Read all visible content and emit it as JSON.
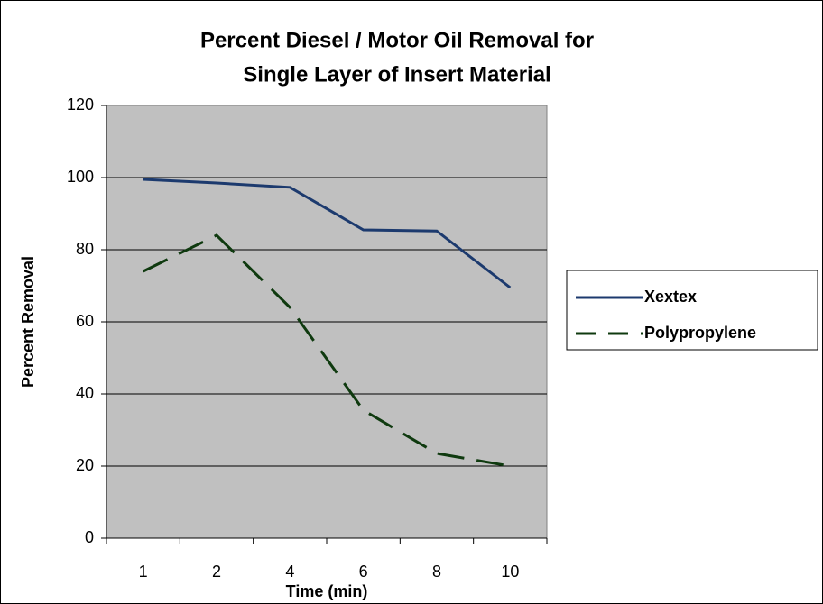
{
  "chart_data": {
    "type": "line",
    "title": [
      "Percent Diesel / Motor Oil Removal for",
      "Single Layer of Insert Material"
    ],
    "x_label": "Time (min)",
    "y_label": "Percent Removal",
    "categories": [
      "1",
      "2",
      "4",
      "6",
      "8",
      "10"
    ],
    "series": [
      {
        "name": "Xextex",
        "color": "#1c3a6e",
        "dashed": false,
        "values": [
          99.5,
          98.5,
          97.3,
          85.5,
          85.2,
          69.5
        ]
      },
      {
        "name": "Polypropylene",
        "color": "#0f3a0f",
        "dashed": true,
        "values": [
          74,
          84,
          64,
          35.5,
          23.5,
          20
        ]
      }
    ],
    "ylim": [
      0,
      120
    ],
    "yticks": [
      0,
      20,
      40,
      60,
      80,
      100,
      120
    ],
    "grid": true,
    "legend": "right"
  }
}
